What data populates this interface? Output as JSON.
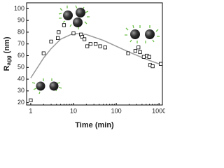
{
  "chart_data": {
    "type": "scatter",
    "xlabel": "Time (min)",
    "ylabel": {
      "main": "R",
      "sub": "agg",
      "unit": "(nm)"
    },
    "xscale": "log",
    "xlim": [
      0.8,
      1200
    ],
    "xticks": [
      1,
      10,
      100,
      1000
    ],
    "ylim": [
      18,
      105
    ],
    "yticks": [
      20,
      30,
      40,
      50,
      60,
      70,
      80,
      90,
      100
    ],
    "series": [
      {
        "mode": "markers",
        "color": "#000000",
        "x": [
          1,
          2,
          3,
          4.3,
          4.5,
          6,
          10,
          15,
          16,
          18,
          21,
          25,
          33,
          42,
          55,
          190,
          280,
          330,
          360,
          440,
          520,
          590,
          620,
          710,
          1100
        ],
        "values": [
          22,
          62,
          72,
          75,
          80,
          86,
          79,
          78,
          76,
          74,
          68,
          70,
          70,
          68,
          67,
          62,
          64,
          67,
          63,
          59,
          60,
          59,
          52,
          51,
          53
        ]
      },
      {
        "mode": "line",
        "color": "#9a9a9a",
        "x": [
          1,
          2,
          3,
          5,
          10,
          20,
          50,
          100,
          200,
          500,
          1000,
          1200
        ],
        "values": [
          41,
          58,
          66,
          74,
          79,
          78,
          73,
          68,
          63,
          57,
          53,
          52
        ]
      }
    ]
  }
}
